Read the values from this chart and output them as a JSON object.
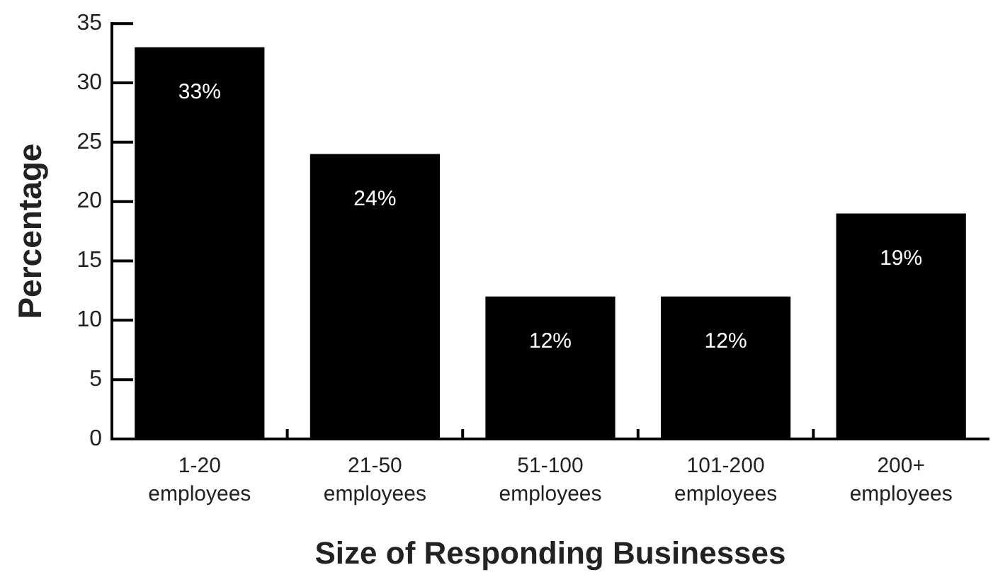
{
  "chart_data": {
    "type": "bar",
    "xlabel": "Size of Responding Businesses",
    "ylabel": "Percentage",
    "categories": [
      "1-20 employees",
      "21-50 employees",
      "51-100 employees",
      "101-200 employees",
      "200+ employees"
    ],
    "values": [
      33,
      24,
      12,
      12,
      19
    ],
    "value_labels": [
      "33%",
      "24%",
      "12%",
      "12%",
      "19%"
    ],
    "color": "#000000",
    "ylim": [
      0,
      35
    ],
    "yticks": [
      0,
      5,
      10,
      15,
      20,
      25,
      30,
      35
    ]
  }
}
